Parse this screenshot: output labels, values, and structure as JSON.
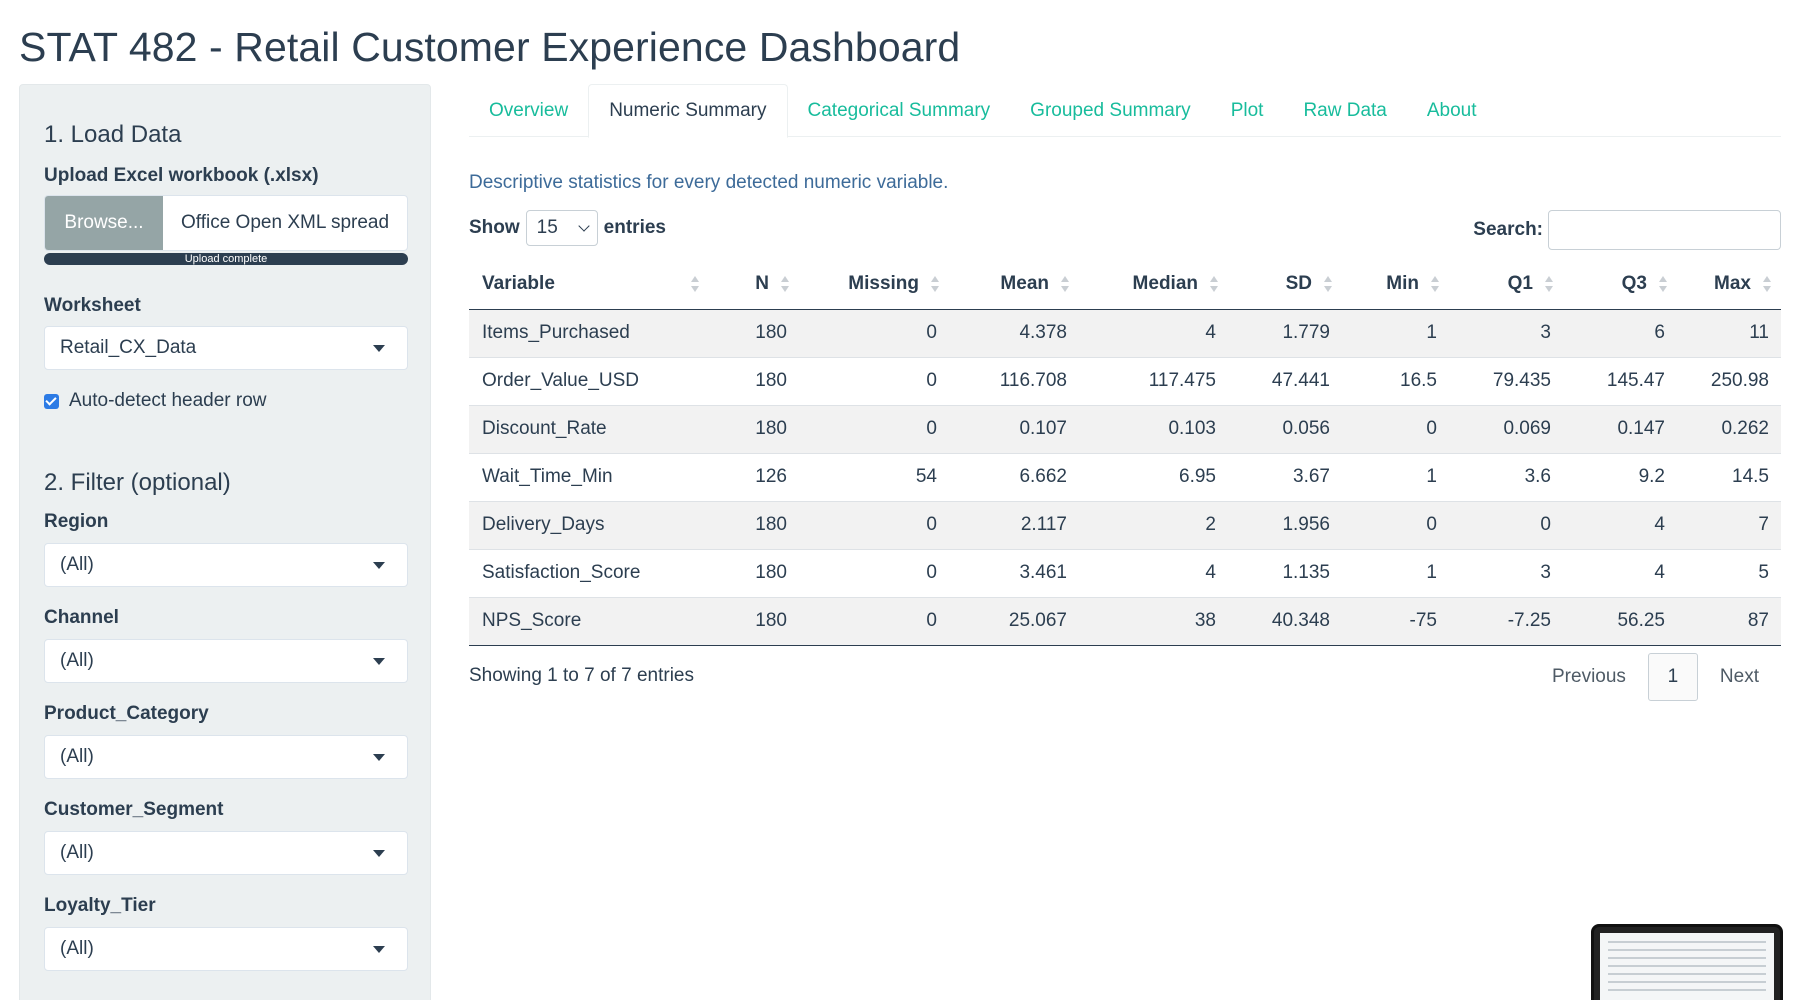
{
  "page": {
    "title": "STAT 482 - Retail Customer Experience Dashboard"
  },
  "sidebar": {
    "load_heading": "1. Load Data",
    "upload_label": "Upload Excel workbook (.xlsx)",
    "browse_label": "Browse...",
    "file_name": "Office Open XML spread",
    "upload_status": "Upload complete",
    "worksheet_label": "Worksheet",
    "worksheet_value": "Retail_CX_Data",
    "auto_header_label": "Auto-detect header row",
    "filter_heading": "2. Filter (optional)",
    "filters": [
      {
        "label": "Region",
        "value": "(All)"
      },
      {
        "label": "Channel",
        "value": "(All)"
      },
      {
        "label": "Product_Category",
        "value": "(All)"
      },
      {
        "label": "Customer_Segment",
        "value": "(All)"
      },
      {
        "label": "Loyalty_Tier",
        "value": "(All)"
      }
    ]
  },
  "tabs": [
    "Overview",
    "Numeric Summary",
    "Categorical Summary",
    "Grouped Summary",
    "Plot",
    "Raw Data",
    "About"
  ],
  "active_tab": "Numeric Summary",
  "main": {
    "description": "Descriptive statistics for every detected numeric variable.",
    "show_label": "Show",
    "page_length": "15",
    "entries_label": "entries",
    "search_label": "Search:",
    "search_value": "",
    "info": "Showing 1 to 7 of 7 entries",
    "prev_label": "Previous",
    "page_number": "1",
    "next_label": "Next"
  },
  "table": {
    "columns": [
      "Variable",
      "N",
      "Missing",
      "Mean",
      "Median",
      "SD",
      "Min",
      "Q1",
      "Q3",
      "Max"
    ],
    "rows": [
      [
        "Items_Purchased",
        "180",
        "0",
        "4.378",
        "4",
        "1.779",
        "1",
        "3",
        "6",
        "11"
      ],
      [
        "Order_Value_USD",
        "180",
        "0",
        "116.708",
        "117.475",
        "47.441",
        "16.5",
        "79.435",
        "145.47",
        "250.98"
      ],
      [
        "Discount_Rate",
        "180",
        "0",
        "0.107",
        "0.103",
        "0.056",
        "0",
        "0.069",
        "0.147",
        "0.262"
      ],
      [
        "Wait_Time_Min",
        "126",
        "54",
        "6.662",
        "6.95",
        "3.67",
        "1",
        "3.6",
        "9.2",
        "14.5"
      ],
      [
        "Delivery_Days",
        "180",
        "0",
        "2.117",
        "2",
        "1.956",
        "0",
        "0",
        "4",
        "7"
      ],
      [
        "Satisfaction_Score",
        "180",
        "0",
        "3.461",
        "4",
        "1.135",
        "1",
        "3",
        "4",
        "5"
      ],
      [
        "NPS_Score",
        "180",
        "0",
        "25.067",
        "38",
        "40.348",
        "-75",
        "-7.25",
        "56.25",
        "87"
      ]
    ]
  },
  "colors": {
    "primary": "#2c3e50",
    "accent": "#18bc9c",
    "sidebar_bg": "#ecf0f1",
    "browse": "#95a5a6"
  }
}
